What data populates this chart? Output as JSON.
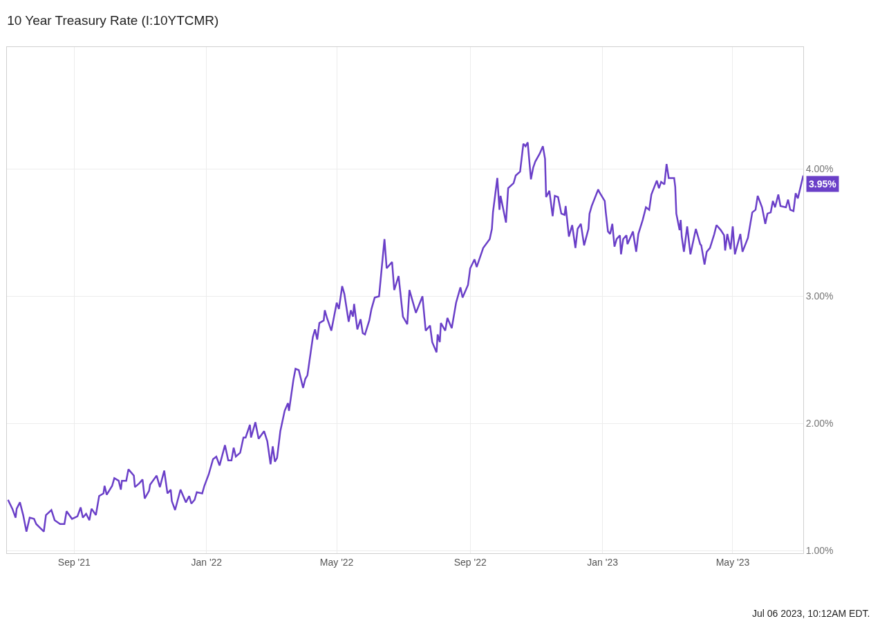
{
  "chart_data": {
    "type": "line",
    "title": "10 Year Treasury Rate (I:10YTCMR)",
    "x": [
      "2021-07-02",
      "2021-07-06",
      "2021-07-09",
      "2021-07-10",
      "2021-07-13",
      "2021-07-16",
      "2021-07-19",
      "2021-07-22",
      "2021-07-26",
      "2021-07-28",
      "2021-08-04",
      "2021-08-06",
      "2021-08-11",
      "2021-08-14",
      "2021-08-19",
      "2021-08-23",
      "2021-08-25",
      "2021-08-30",
      "2021-09-04",
      "2021-09-07",
      "2021-09-09",
      "2021-09-12",
      "2021-09-15",
      "2021-09-17",
      "2021-09-21",
      "2021-09-24",
      "2021-09-28",
      "2021-09-29",
      "2021-10-01",
      "2021-10-06",
      "2021-10-08",
      "2021-10-12",
      "2021-10-14",
      "2021-10-15",
      "2021-10-19",
      "2021-10-21",
      "2021-10-26",
      "2021-10-27",
      "2021-10-31",
      "2021-11-03",
      "2021-11-05",
      "2021-11-09",
      "2021-11-10",
      "2021-11-16",
      "2021-11-19",
      "2021-11-23",
      "2021-11-26",
      "2021-11-29",
      "2021-11-30",
      "2021-12-03",
      "2021-12-08",
      "2021-12-13",
      "2021-12-16",
      "2021-12-18",
      "2021-12-21",
      "2021-12-23",
      "2021-12-28",
      "2021-12-30",
      "2022-01-03",
      "2022-01-07",
      "2022-01-10",
      "2022-01-13",
      "2022-01-18",
      "2022-01-21",
      "2022-01-24",
      "2022-01-26",
      "2022-01-28",
      "2022-02-01",
      "2022-02-04",
      "2022-02-06",
      "2022-02-10",
      "2022-02-11",
      "2022-02-15",
      "2022-02-18",
      "2022-02-23",
      "2022-02-26",
      "2022-03-01",
      "2022-03-03",
      "2022-03-05",
      "2022-03-07",
      "2022-03-10",
      "2022-03-14",
      "2022-03-17",
      "2022-03-18",
      "2022-03-22",
      "2022-03-24",
      "2022-03-27",
      "2022-03-31",
      "2022-04-02",
      "2022-04-04",
      "2022-04-09",
      "2022-04-11",
      "2022-04-13",
      "2022-04-15",
      "2022-04-19",
      "2022-04-20",
      "2022-04-22",
      "2022-04-26",
      "2022-05-01",
      "2022-05-03",
      "2022-05-06",
      "2022-05-08",
      "2022-05-12",
      "2022-05-14",
      "2022-05-16",
      "2022-05-17",
      "2022-05-20",
      "2022-05-23",
      "2022-05-25",
      "2022-05-27",
      "2022-05-31",
      "2022-06-02",
      "2022-06-05",
      "2022-06-09",
      "2022-06-14",
      "2022-06-16",
      "2022-06-21",
      "2022-06-23",
      "2022-06-27",
      "2022-07-01",
      "2022-07-05",
      "2022-07-07",
      "2022-07-13",
      "2022-07-19",
      "2022-07-22",
      "2022-07-26",
      "2022-07-28",
      "2022-08-01",
      "2022-08-02",
      "2022-08-04",
      "2022-08-05",
      "2022-08-09",
      "2022-08-11",
      "2022-08-15",
      "2022-08-19",
      "2022-08-23",
      "2022-08-25",
      "2022-08-30",
      "2022-09-01",
      "2022-09-05",
      "2022-09-07",
      "2022-09-13",
      "2022-09-19",
      "2022-09-21",
      "2022-09-22",
      "2022-09-26",
      "2022-09-28",
      "2022-09-29",
      "2022-10-04",
      "2022-10-06",
      "2022-10-11",
      "2022-10-13",
      "2022-10-17",
      "2022-10-20",
      "2022-10-22",
      "2022-10-24",
      "2022-10-27",
      "2022-10-29",
      "2022-10-31",
      "2022-11-04",
      "2022-11-07",
      "2022-11-09",
      "2022-11-10",
      "2022-11-13",
      "2022-11-16",
      "2022-11-18",
      "2022-11-21",
      "2022-11-24",
      "2022-11-27",
      "2022-11-28",
      "2022-12-01",
      "2022-12-04",
      "2022-12-07",
      "2022-12-09",
      "2022-12-12",
      "2022-12-15",
      "2022-12-19",
      "2022-12-20",
      "2022-12-22",
      "2022-12-28",
      "2022-12-29",
      "2023-01-03",
      "2023-01-04",
      "2023-01-06",
      "2023-01-08",
      "2023-01-10",
      "2023-01-12",
      "2023-01-14",
      "2023-01-17",
      "2023-01-18",
      "2023-01-20",
      "2023-01-23",
      "2023-01-24",
      "2023-01-29",
      "2023-02-01",
      "2023-02-03",
      "2023-02-07",
      "2023-02-10",
      "2023-02-13",
      "2023-02-15",
      "2023-02-20",
      "2023-02-22",
      "2023-02-24",
      "2023-02-27",
      "2023-03-01",
      "2023-03-03",
      "2023-03-08",
      "2023-03-09",
      "2023-03-10",
      "2023-03-13",
      "2023-03-14",
      "2023-03-15",
      "2023-03-17",
      "2023-03-20",
      "2023-03-23",
      "2023-03-28",
      "2023-04-01",
      "2023-04-02",
      "2023-04-05",
      "2023-04-07",
      "2023-04-10",
      "2023-04-14",
      "2023-04-16",
      "2023-04-18",
      "2023-04-20",
      "2023-04-23",
      "2023-04-24",
      "2023-04-26",
      "2023-04-29",
      "2023-05-01",
      "2023-05-03",
      "2023-05-08",
      "2023-05-10",
      "2023-05-15",
      "2023-05-19",
      "2023-05-22",
      "2023-05-24",
      "2023-05-28",
      "2023-05-31",
      "2023-06-02",
      "2023-06-05",
      "2023-06-07",
      "2023-06-09",
      "2023-06-12",
      "2023-06-14",
      "2023-06-19",
      "2023-06-21",
      "2023-06-23",
      "2023-06-26",
      "2023-06-28",
      "2023-06-30",
      "2023-07-05"
    ],
    "series": [
      {
        "color": "#6a3fc8",
        "values": [
          1.4,
          1.33,
          1.26,
          1.33,
          1.38,
          1.28,
          1.15,
          1.26,
          1.25,
          1.21,
          1.15,
          1.28,
          1.32,
          1.24,
          1.21,
          1.21,
          1.31,
          1.25,
          1.27,
          1.34,
          1.26,
          1.29,
          1.24,
          1.33,
          1.28,
          1.43,
          1.45,
          1.51,
          1.44,
          1.51,
          1.57,
          1.55,
          1.48,
          1.55,
          1.55,
          1.64,
          1.59,
          1.5,
          1.53,
          1.56,
          1.41,
          1.47,
          1.52,
          1.59,
          1.5,
          1.63,
          1.45,
          1.48,
          1.39,
          1.32,
          1.48,
          1.38,
          1.43,
          1.37,
          1.4,
          1.46,
          1.45,
          1.51,
          1.6,
          1.72,
          1.74,
          1.67,
          1.83,
          1.71,
          1.71,
          1.81,
          1.74,
          1.77,
          1.89,
          1.89,
          1.99,
          1.89,
          2.01,
          1.88,
          1.94,
          1.86,
          1.68,
          1.82,
          1.7,
          1.73,
          1.94,
          2.1,
          2.16,
          2.1,
          2.34,
          2.43,
          2.42,
          2.28,
          2.35,
          2.38,
          2.68,
          2.74,
          2.66,
          2.79,
          2.81,
          2.89,
          2.83,
          2.73,
          2.95,
          2.9,
          3.08,
          3.02,
          2.8,
          2.89,
          2.84,
          2.94,
          2.74,
          2.82,
          2.71,
          2.7,
          2.81,
          2.9,
          2.99,
          3.0,
          3.45,
          3.22,
          3.27,
          3.05,
          3.16,
          2.84,
          2.78,
          3.05,
          2.87,
          3.0,
          2.73,
          2.77,
          2.64,
          2.56,
          2.7,
          2.64,
          2.79,
          2.73,
          2.83,
          2.75,
          2.95,
          3.07,
          2.99,
          3.09,
          3.22,
          3.29,
          3.23,
          3.38,
          3.45,
          3.53,
          3.66,
          3.93,
          3.68,
          3.79,
          3.58,
          3.85,
          3.89,
          3.95,
          3.98,
          4.2,
          4.18,
          4.21,
          3.92,
          4.01,
          4.06,
          4.12,
          4.18,
          4.08,
          3.78,
          3.83,
          3.63,
          3.79,
          3.78,
          3.65,
          3.64,
          3.71,
          3.47,
          3.56,
          3.38,
          3.53,
          3.57,
          3.4,
          3.53,
          3.65,
          3.71,
          3.84,
          3.82,
          3.75,
          3.66,
          3.51,
          3.49,
          3.57,
          3.39,
          3.45,
          3.48,
          3.33,
          3.45,
          3.48,
          3.41,
          3.51,
          3.35,
          3.49,
          3.6,
          3.7,
          3.68,
          3.8,
          3.91,
          3.85,
          3.9,
          3.88,
          4.04,
          3.93,
          3.93,
          3.86,
          3.65,
          3.52,
          3.6,
          3.47,
          3.35,
          3.55,
          3.33,
          3.53,
          3.41,
          3.4,
          3.25,
          3.35,
          3.38,
          3.49,
          3.56,
          3.54,
          3.52,
          3.48,
          3.36,
          3.49,
          3.37,
          3.55,
          3.33,
          3.49,
          3.35,
          3.46,
          3.66,
          3.68,
          3.79,
          3.7,
          3.57,
          3.65,
          3.66,
          3.75,
          3.7,
          3.8,
          3.71,
          3.7,
          3.76,
          3.68,
          3.67,
          3.81,
          3.77,
          3.95
        ]
      }
    ],
    "xlim": [
      "2021-07-01",
      "2023-07-05"
    ],
    "xticks": [
      {
        "value": "2021-09-01",
        "label": "Sep '21"
      },
      {
        "value": "2022-01-01",
        "label": "Jan '22"
      },
      {
        "value": "2022-05-01",
        "label": "May '22"
      },
      {
        "value": "2022-09-01",
        "label": "Sep '22"
      },
      {
        "value": "2023-01-01",
        "label": "Jan '23"
      },
      {
        "value": "2023-05-01",
        "label": "May '23"
      }
    ],
    "ylim": [
      0.98,
      4.96
    ],
    "yticks": [
      {
        "value": 1,
        "label": "1.00%"
      },
      {
        "value": 2,
        "label": "2.00%"
      },
      {
        "value": 3,
        "label": "3.00%"
      },
      {
        "value": 4,
        "label": "4.00%"
      }
    ],
    "grid": true,
    "annotations": [
      {
        "text": "3.95%",
        "x": "2023-07-05",
        "y": 3.95
      },
      "Jul 06 2023, 10:12AM EDT."
    ]
  }
}
